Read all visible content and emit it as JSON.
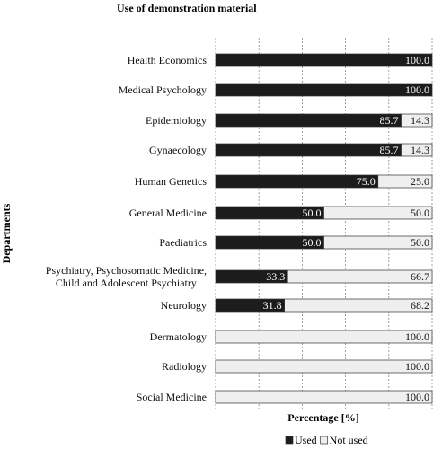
{
  "chart_data": {
    "type": "stacked-bar-horizontal",
    "title": "Use of demonstration material",
    "xlabel": "Percentage [%]",
    "ylabel": "Departments",
    "categories": [
      "Health Economics",
      "Medical Psychology",
      "Epidemiology",
      "Gynaecology",
      "Human Genetics",
      "General Medicine",
      "Paediatrics",
      "Psychiatry, Psychosomatic Medicine,\nChild and Adolescent Psychiatry",
      "Neurology",
      "Dermatology",
      "Radiology",
      "Social Medicine"
    ],
    "series": [
      {
        "name": "Used",
        "color": "#1c1c1c",
        "values": [
          100,
          100,
          85.7,
          85.7,
          75,
          50,
          50,
          33.3,
          31.8,
          0,
          0,
          0
        ],
        "value_labels": [
          "100.0",
          "100.0",
          "85.7",
          "85.7",
          "75.0",
          "50.0",
          "50.0",
          "33.3",
          "31.8",
          null,
          null,
          null
        ]
      },
      {
        "name": "Not used",
        "color": "#efefef",
        "values": [
          0,
          0,
          14.3,
          14.3,
          25,
          50,
          50,
          66.7,
          68.2,
          100,
          100,
          100
        ],
        "value_labels": [
          null,
          null,
          "14.3",
          "14.3",
          "25.0",
          "50.0",
          "50.0",
          "66.7",
          "68.2",
          "100.0",
          "100.0",
          "100.0"
        ]
      }
    ],
    "xlim": [
      0,
      100
    ],
    "grid": true
  }
}
